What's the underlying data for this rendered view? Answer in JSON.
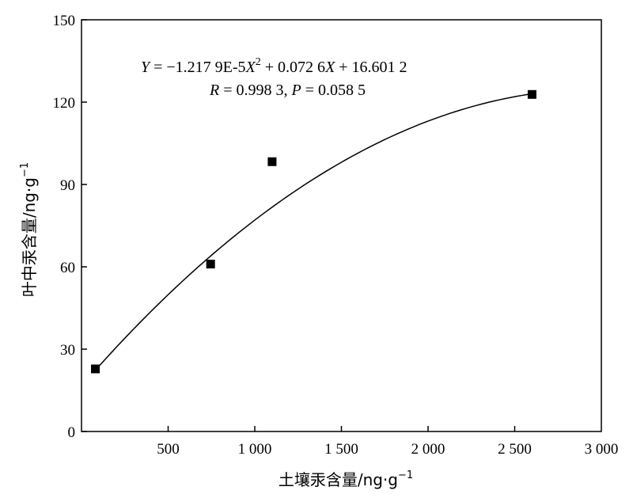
{
  "chart_data": {
    "type": "scatter",
    "x": [
      80,
      745,
      1100,
      2600
    ],
    "y": [
      22.8,
      61,
      98.3,
      122.8
    ],
    "xlim": [
      0,
      3000
    ],
    "ylim": [
      0,
      150
    ],
    "xticks": [
      500,
      1000,
      1500,
      2000,
      2500,
      3000
    ],
    "yticks": [
      0,
      30,
      60,
      90,
      120,
      150
    ],
    "xtick_labels": [
      "500",
      "1 000",
      "1 500",
      "2 000",
      "2 500",
      "3 000"
    ],
    "ytick_labels": [
      "0",
      "30",
      "60",
      "90",
      "120",
      "150"
    ],
    "xlabel": "土壤汞含量/ng·g",
    "xlabel_sup": "−1",
    "ylabel": "叶中汞含量/ng·g",
    "ylabel_sup": "−1",
    "fit": {
      "type": "quadratic",
      "a": -1.2179e-05,
      "b": 0.0726,
      "c": 16.6012,
      "x_range": [
        80,
        2600
      ]
    },
    "annotation": {
      "equation_prefix": "Y",
      "equation_mid": " = −1.217 9E-5",
      "equation_x": "X",
      "equation_sup": "2",
      "equation_rest": " + 0.072 6",
      "equation_x2": "X",
      "equation_end": " + 16.601 2",
      "r_symbol": "R",
      "r_value": " = 0.998 3, ",
      "p_symbol": "P",
      "p_value": " = 0.058 5"
    },
    "grid": false,
    "legend": "none",
    "marker": "square",
    "marker_color": "#000000",
    "line_color": "#000000"
  }
}
